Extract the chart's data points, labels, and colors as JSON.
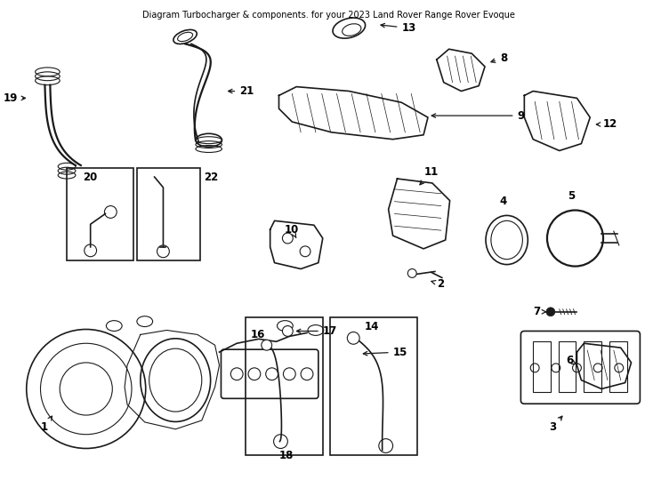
{
  "title": "Diagram Turbocharger & components. for your 2023 Land Rover Range Rover Evoque",
  "bg_color": "#ffffff",
  "line_color": "#1a1a1a",
  "text_color": "#000000",
  "font_size_label": 8.5,
  "font_size_title": 7.0,
  "figw": 7.34,
  "figh": 5.4,
  "dpi": 100
}
